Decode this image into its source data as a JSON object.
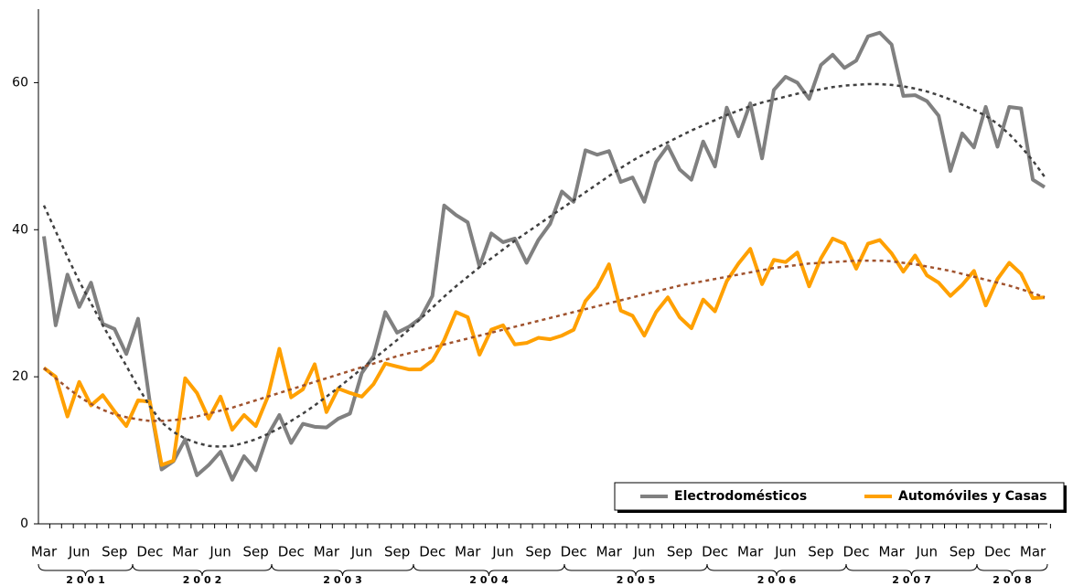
{
  "chart_data": {
    "type": "line",
    "categories": [
      "Mar",
      null,
      null,
      "Jun",
      null,
      null,
      "Sep",
      null,
      null,
      "Dec",
      null,
      null,
      "Mar",
      null,
      null,
      "Jun",
      null,
      null,
      "Sep",
      null,
      null,
      "Dec",
      null,
      null,
      "Mar",
      null,
      null,
      "Jun",
      null,
      null,
      "Sep",
      null,
      null,
      "Dec",
      null,
      null,
      "Mar",
      null,
      null,
      "Jun",
      null,
      null,
      "Sep",
      null,
      null,
      "Dec",
      null,
      null,
      "Mar",
      null,
      null,
      "Jun",
      null,
      null,
      "Sep",
      null,
      null,
      "Dec",
      null,
      null,
      "Mar",
      null,
      null,
      "Jun",
      null,
      null,
      "Sep",
      null,
      null,
      "Dec",
      null,
      null,
      "Mar",
      null,
      null,
      "Jun",
      null,
      null,
      "Sep",
      null,
      null,
      "Dec",
      null,
      null,
      "Mar",
      null
    ],
    "x_groups": [
      "2001",
      "2002",
      "2003",
      "2004",
      "2005",
      "2006",
      "2007",
      "2008"
    ],
    "ylim": [
      0,
      70
    ],
    "yticks": [
      0,
      20,
      40,
      60
    ],
    "legend": "bottom-right",
    "series": [
      {
        "name": "Electrodomésticos",
        "color": "#808080",
        "values": [
          39.1,
          27,
          33.9,
          29.5,
          32.8,
          27.2,
          26.5,
          23.1,
          27.9,
          16.5,
          7.4,
          8.5,
          11.5,
          6.6,
          8.0,
          9.8,
          6.0,
          9.2,
          7.3,
          12,
          14.8,
          11,
          13.6,
          13.2,
          13.1,
          14.3,
          15,
          20.5,
          22.8,
          28.8,
          26,
          26.8,
          28,
          31,
          43.3,
          42,
          41,
          35,
          39.5,
          38.3,
          38.8,
          35.5,
          38.6,
          40.8,
          45.2,
          43.8,
          50.8,
          50.2,
          50.7,
          46.5,
          47.1,
          43.8,
          49.2,
          51.4,
          48.2,
          46.8,
          52,
          48.6,
          56.6,
          52.7,
          57.2,
          49.7,
          59,
          60.8,
          60,
          57.8,
          62.4,
          63.8,
          62,
          63,
          66.3,
          66.8,
          65.2,
          58.2,
          58.3,
          57.5,
          55.5,
          48,
          53.1,
          51.2,
          56.7,
          51.3,
          56.7,
          56.5,
          46.8,
          45.8
        ]
      },
      {
        "name": "Automóviles y Casas",
        "color": "#ffa000",
        "values": [
          21.2,
          20,
          14.6,
          19.3,
          16.1,
          17.5,
          15.3,
          13.3,
          16.8,
          16.6,
          8,
          8.6,
          19.8,
          17.8,
          14.3,
          17.3,
          12.8,
          14.8,
          13.3,
          17.2,
          23.8,
          17.2,
          18.3,
          21.7,
          15.2,
          18.4,
          17.8,
          17.3,
          19,
          21.8,
          21.4,
          21,
          21,
          22.2,
          25,
          28.8,
          28.1,
          23,
          26.4,
          27,
          24.4,
          24.6,
          25.3,
          25.1,
          25.6,
          26.4,
          30.3,
          32.2,
          35.3,
          29,
          28.3,
          25.6,
          28.8,
          30.8,
          28.1,
          26.6,
          30.5,
          28.9,
          33,
          35.4,
          37.4,
          32.6,
          35.9,
          35.6,
          36.9,
          32.3,
          36.1,
          38.8,
          38.1,
          34.7,
          38.1,
          38.6,
          36.8,
          34.3,
          36.5,
          33.8,
          32.8,
          31,
          32.5,
          34.4,
          29.7,
          33.3,
          35.5,
          34,
          30.7,
          30.8
        ]
      },
      {
        "color": "#404040",
        "dashed": true,
        "values": [
          43.3,
          39.8,
          36.3,
          33.0,
          30.0,
          27.0,
          24.2,
          21.5,
          18.6,
          16.0,
          13.8,
          12.5,
          11.6,
          11.0,
          10.6,
          10.5,
          10.6,
          11.0,
          11.5,
          12.2,
          13.0,
          14.0,
          15.0,
          16.1,
          17.3,
          18.5,
          19.8,
          21.1,
          22.4,
          23.7,
          25.0,
          26.4,
          27.9,
          29.4,
          30.9,
          32.3,
          33.6,
          34.9,
          36.1,
          37.3,
          38.5,
          39.6,
          40.7,
          41.8,
          42.9,
          44.0,
          45.1,
          46.2,
          47.3,
          48.4,
          49.4,
          50.3,
          51.1,
          51.9,
          52.7,
          53.5,
          54.2,
          54.9,
          55.6,
          56.2,
          56.8,
          57.3,
          57.7,
          58.1,
          58.5,
          58.8,
          59.1,
          59.4,
          59.6,
          59.7,
          59.8,
          59.8,
          59.7,
          59.5,
          59.2,
          58.8,
          58.3,
          57.7,
          57.0,
          56.3,
          55.5,
          54.4,
          53.0,
          51.3,
          49.4,
          47.2
        ]
      },
      {
        "color": "#a0522d",
        "dashed": true,
        "values": [
          21.2,
          19.8,
          18.5,
          17.3,
          16.3,
          15.5,
          14.9,
          14.5,
          14.2,
          14.0,
          14.0,
          14.1,
          14.3,
          14.6,
          15.0,
          15.4,
          15.8,
          16.3,
          16.8,
          17.3,
          17.8,
          18.3,
          18.8,
          19.3,
          19.8,
          20.3,
          20.8,
          21.3,
          21.8,
          22.3,
          22.8,
          23.2,
          23.6,
          24.0,
          24.4,
          24.8,
          25.2,
          25.6,
          26.0,
          26.4,
          26.8,
          27.2,
          27.6,
          28.0,
          28.4,
          28.8,
          29.2,
          29.6,
          30.0,
          30.4,
          30.8,
          31.2,
          31.6,
          32.0,
          32.4,
          32.7,
          33.0,
          33.3,
          33.6,
          33.9,
          34.2,
          34.5,
          34.8,
          35.0,
          35.2,
          35.4,
          35.5,
          35.6,
          35.7,
          35.8,
          35.8,
          35.8,
          35.7,
          35.5,
          35.3,
          35.0,
          34.7,
          34.4,
          34.0,
          33.6,
          33.2,
          32.8,
          32.4,
          31.9,
          31.4,
          30.8
        ]
      }
    ]
  }
}
